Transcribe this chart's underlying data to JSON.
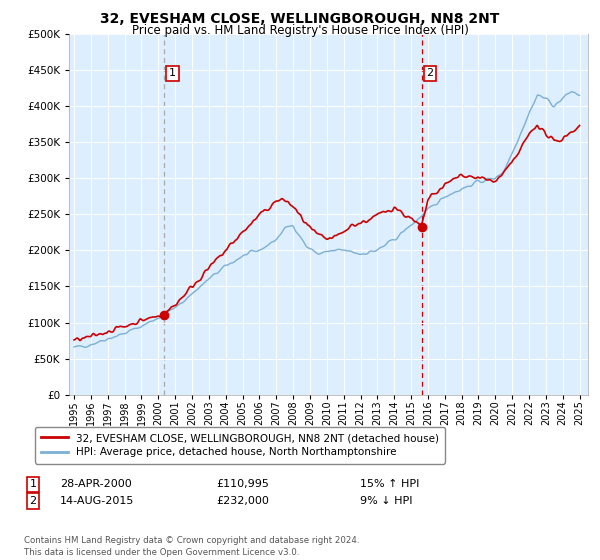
{
  "title": "32, EVESHAM CLOSE, WELLINGBOROUGH, NN8 2NT",
  "subtitle": "Price paid vs. HM Land Registry's House Price Index (HPI)",
  "legend_line1": "32, EVESHAM CLOSE, WELLINGBOROUGH, NN8 2NT (detached house)",
  "legend_line2": "HPI: Average price, detached house, North Northamptonshire",
  "footer": "Contains HM Land Registry data © Crown copyright and database right 2024.\nThis data is licensed under the Open Government Licence v3.0.",
  "ann1_label": "1",
  "ann1_date": "28-APR-2000",
  "ann1_price": "£110,995",
  "ann1_hpi": "15% ↑ HPI",
  "ann1_x": 2000.32,
  "ann1_y": 110995,
  "ann2_label": "2",
  "ann2_date": "14-AUG-2015",
  "ann2_price": "£232,000",
  "ann2_hpi": "9% ↓ HPI",
  "ann2_x": 2015.62,
  "ann2_y": 232000,
  "price_color": "#cc0000",
  "hpi_color": "#7bafd4",
  "dash1_color": "#aaaaaa",
  "dash2_color": "#cc0000",
  "bg_color": "#ddeeff",
  "grid_color": "#ffffff",
  "ylim": [
    0,
    500000
  ],
  "yticks": [
    0,
    50000,
    100000,
    150000,
    200000,
    250000,
    300000,
    350000,
    400000,
    450000,
    500000
  ],
  "xlim_start": 1994.7,
  "xlim_end": 2025.5,
  "xticks": [
    1995,
    1996,
    1997,
    1998,
    1999,
    2000,
    2001,
    2002,
    2003,
    2004,
    2005,
    2006,
    2007,
    2008,
    2009,
    2010,
    2011,
    2012,
    2013,
    2014,
    2015,
    2016,
    2017,
    2018,
    2019,
    2020,
    2021,
    2022,
    2023,
    2024,
    2025
  ]
}
